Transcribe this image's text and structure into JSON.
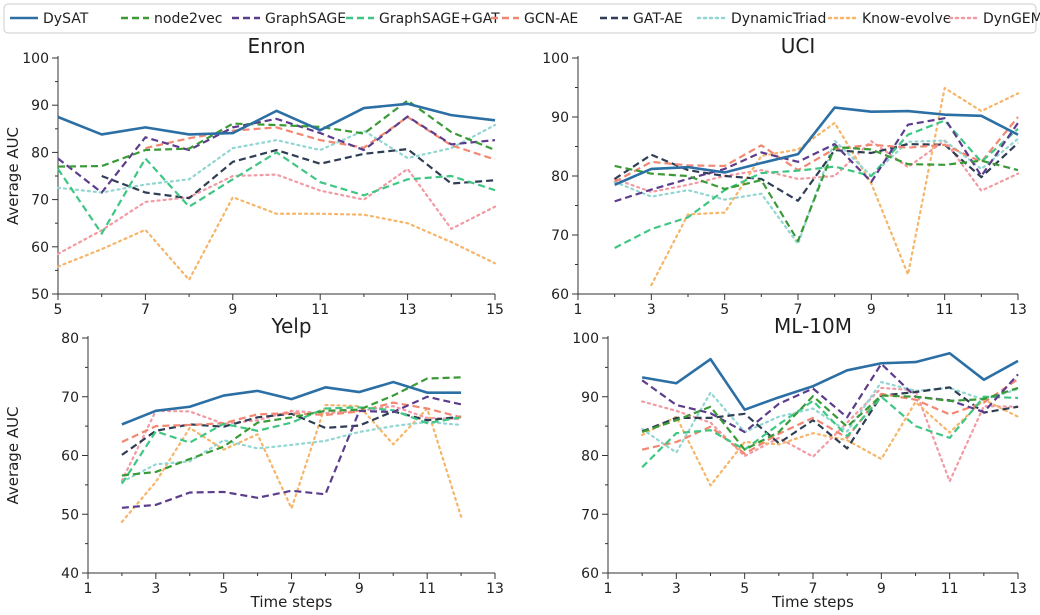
{
  "colors": {
    "DySAT": "#2b6fa5",
    "node2vec": "#3a9a35",
    "GraphSAGE": "#5c3c8c",
    "GraphSAGE+GAT": "#3fc683",
    "GCN-AE": "#f28872",
    "GAT-AE": "#2f3e55",
    "DynamicTriad": "#92d6d2",
    "Know-evolve": "#f6b568",
    "DynGEM": "#f29aa3"
  },
  "legend": [
    {
      "name": "DySAT",
      "style": "solid"
    },
    {
      "name": "node2vec",
      "style": "dashed"
    },
    {
      "name": "GraphSAGE",
      "style": "dashed"
    },
    {
      "name": "GraphSAGE+GAT",
      "style": "dashed"
    },
    {
      "name": "GCN-AE",
      "style": "dashed"
    },
    {
      "name": "GAT-AE",
      "style": "dashed"
    },
    {
      "name": "DynamicTriad",
      "style": "dotted"
    },
    {
      "name": "Know-evolve",
      "style": "dotted"
    },
    {
      "name": "DynGEM",
      "style": "dotted"
    }
  ],
  "chart_data": [
    {
      "type": "line",
      "title": "Enron",
      "xlabel": "",
      "ylabel": "Average AUC",
      "xlim": [
        5,
        15
      ],
      "ylim": [
        50,
        100
      ],
      "xticks": [
        5,
        7,
        9,
        11,
        13,
        15
      ],
      "yticks": [
        50,
        60,
        70,
        80,
        90,
        100
      ],
      "x": [
        5,
        6,
        7,
        8,
        9,
        10,
        11,
        12,
        13,
        14,
        15
      ],
      "series": [
        {
          "name": "DySAT",
          "values": [
            87.5,
            83.8,
            85.3,
            83.8,
            84.1,
            88.8,
            84.7,
            89.4,
            90.3,
            87.9,
            86.8
          ]
        },
        {
          "name": "node2vec",
          "values": [
            77.0,
            77.1,
            80.5,
            80.8,
            86.1,
            85.8,
            85.4,
            84.0,
            91.0,
            84.3,
            80.5
          ]
        },
        {
          "name": "GraphSAGE",
          "values": [
            78.7,
            71.5,
            83.2,
            80.5,
            85.3,
            87.1,
            84.1,
            80.5,
            87.6,
            81.7,
            82.6
          ]
        },
        {
          "name": "GraphSAGE+GAT",
          "values": [
            76.5,
            62.8,
            78.7,
            68.5,
            74.3,
            80.0,
            73.7,
            70.9,
            74.3,
            75.0,
            72.0
          ]
        },
        {
          "name": "GCN-AE",
          "values": [
            null,
            null,
            80.9,
            83.0,
            84.6,
            85.3,
            82.6,
            81.0,
            87.5,
            81.5,
            78.5
          ]
        },
        {
          "name": "GAT-AE",
          "values": [
            null,
            75.0,
            71.5,
            70.3,
            78.0,
            80.5,
            77.6,
            79.7,
            80.7,
            73.4,
            74.1
          ]
        },
        {
          "name": "DynamicTriad",
          "values": [
            72.5,
            71.5,
            73.2,
            74.3,
            80.9,
            82.6,
            80.5,
            84.6,
            78.8,
            80.9,
            85.8
          ]
        },
        {
          "name": "Know-evolve",
          "values": [
            55.8,
            59.5,
            63.6,
            53.0,
            70.5,
            67.0,
            67.0,
            66.8,
            65.0,
            61.0,
            56.5
          ]
        },
        {
          "name": "DynGEM",
          "values": [
            58.5,
            63.5,
            69.5,
            70.5,
            75.0,
            75.3,
            71.9,
            70.0,
            76.5,
            63.8,
            68.5
          ]
        }
      ]
    },
    {
      "type": "line",
      "title": "UCI",
      "xlabel": "",
      "ylabel": "",
      "xlim": [
        1,
        13
      ],
      "ylim": [
        60,
        100
      ],
      "xticks": [
        1,
        3,
        5,
        7,
        9,
        11,
        13
      ],
      "yticks": [
        60,
        70,
        80,
        90,
        100
      ],
      "x": [
        2,
        3,
        4,
        5,
        6,
        7,
        8,
        9,
        10,
        11,
        12,
        13
      ],
      "series": [
        {
          "name": "DySAT",
          "values": [
            78.5,
            81.2,
            81.5,
            80.6,
            82.2,
            83.7,
            91.6,
            90.9,
            91.0,
            90.4,
            90.2,
            87.0
          ]
        },
        {
          "name": "node2vec",
          "values": [
            81.7,
            80.4,
            80.0,
            77.8,
            79.3,
            69.0,
            84.9,
            84.5,
            82.0,
            81.9,
            82.6,
            81.0
          ]
        },
        {
          "name": "GraphSAGE",
          "values": [
            75.7,
            77.7,
            79.5,
            81.2,
            84.0,
            82.4,
            85.4,
            79.0,
            88.7,
            89.8,
            80.0,
            89.0
          ]
        },
        {
          "name": "GraphSAGE+GAT",
          "values": [
            67.8,
            71.0,
            73.0,
            77.6,
            80.5,
            80.9,
            81.6,
            80.0,
            87.0,
            89.4,
            82.4,
            88.0
          ]
        },
        {
          "name": "GCN-AE",
          "values": [
            79.0,
            82.4,
            81.8,
            81.7,
            85.2,
            81.0,
            84.6,
            85.3,
            84.8,
            85.3,
            82.4,
            90.0
          ]
        },
        {
          "name": "GAT-AE",
          "values": [
            79.5,
            83.6,
            81.0,
            80.0,
            79.5,
            75.8,
            84.4,
            83.9,
            85.4,
            85.3,
            79.8,
            85.6
          ]
        },
        {
          "name": "DynamicTriad",
          "values": [
            79.0,
            76.5,
            77.6,
            76.0,
            77.0,
            68.5,
            86.0,
            80.0,
            85.8,
            86.0,
            81.2,
            86.3
          ]
        },
        {
          "name": "Know-evolve",
          "values": [
            null,
            61.5,
            73.5,
            73.8,
            83.4,
            84.5,
            89.0,
            78.7,
            63.3,
            94.9,
            91.0,
            94.0
          ]
        },
        {
          "name": "DynGEM",
          "values": [
            79.5,
            77.3,
            78.5,
            80.0,
            81.0,
            79.5,
            80.0,
            85.9,
            81.5,
            86.0,
            77.5,
            80.4
          ]
        }
      ]
    },
    {
      "type": "line",
      "title": "Yelp",
      "xlabel": "Time steps",
      "ylabel": "Average AUC",
      "xlim": [
        1,
        13
      ],
      "ylim": [
        40,
        80
      ],
      "xticks": [
        1,
        3,
        5,
        7,
        9,
        11,
        13
      ],
      "yticks": [
        40,
        50,
        60,
        70,
        80
      ],
      "x": [
        2,
        3,
        4,
        5,
        6,
        7,
        8,
        9,
        10,
        11,
        12
      ],
      "series": [
        {
          "name": "DySAT",
          "values": [
            65.3,
            67.6,
            68.3,
            70.2,
            71.0,
            69.6,
            71.6,
            70.8,
            72.5,
            70.7,
            70.7
          ]
        },
        {
          "name": "node2vec",
          "values": [
            56.6,
            57.2,
            59.4,
            61.5,
            65.6,
            66.5,
            67.6,
            67.8,
            70.2,
            73.1,
            73.3
          ]
        },
        {
          "name": "GraphSAGE",
          "values": [
            51.1,
            51.6,
            53.7,
            53.8,
            52.8,
            54.0,
            53.4,
            67.6,
            67.4,
            70.0,
            68.7
          ]
        },
        {
          "name": "GraphSAGE+GAT",
          "values": [
            55.2,
            64.1,
            62.2,
            65.4,
            64.2,
            65.6,
            68.0,
            68.2,
            67.7,
            65.5,
            66.5
          ]
        },
        {
          "name": "GCN-AE",
          "values": [
            62.3,
            65.0,
            65.2,
            65.5,
            67.0,
            67.2,
            66.9,
            67.5,
            69.0,
            68.0,
            66.5
          ]
        },
        {
          "name": "GAT-AE",
          "values": [
            60.1,
            64.2,
            65.3,
            64.9,
            66.5,
            67.1,
            64.7,
            65.1,
            67.5,
            66.0,
            66.6
          ]
        },
        {
          "name": "DynamicTriad",
          "values": [
            55.5,
            58.5,
            59.0,
            62.6,
            61.2,
            61.8,
            62.5,
            64.0,
            65.0,
            65.7,
            65.2
          ]
        },
        {
          "name": "Know-evolve",
          "values": [
            48.7,
            55.5,
            64.7,
            61.0,
            63.6,
            51.0,
            68.6,
            68.4,
            61.9,
            68.0,
            49.6
          ]
        },
        {
          "name": "DynGEM",
          "values": [
            55.7,
            67.6,
            67.5,
            65.4,
            66.0,
            67.6,
            67.2,
            67.6,
            68.4,
            66.4,
            66.2
          ]
        }
      ]
    },
    {
      "type": "line",
      "title": "ML-10M",
      "xlabel": "Time steps",
      "ylabel": "",
      "xlim": [
        1,
        13
      ],
      "ylim": [
        60,
        100
      ],
      "xticks": [
        1,
        3,
        5,
        7,
        9,
        11,
        13
      ],
      "yticks": [
        60,
        70,
        80,
        90,
        100
      ],
      "x": [
        2,
        3,
        4,
        5,
        6,
        7,
        8,
        9,
        10,
        11,
        12,
        13
      ],
      "series": [
        {
          "name": "DySAT",
          "values": [
            93.3,
            92.3,
            96.4,
            87.8,
            89.9,
            91.8,
            94.5,
            95.7,
            95.9,
            97.4,
            92.9,
            96.1
          ]
        },
        {
          "name": "node2vec",
          "values": [
            84.0,
            86.0,
            88.3,
            81.0,
            84.0,
            90.1,
            84.9,
            90.2,
            90.0,
            89.3,
            89.6,
            91.5
          ]
        },
        {
          "name": "GraphSAGE",
          "values": [
            92.8,
            88.6,
            87.2,
            84.0,
            88.8,
            91.4,
            86.5,
            95.6,
            90.0,
            89.4,
            87.4,
            93.8
          ]
        },
        {
          "name": "GraphSAGE+GAT",
          "values": [
            78.0,
            83.8,
            84.3,
            81.0,
            85.3,
            89.3,
            83.3,
            90.0,
            85.0,
            83.0,
            90.0,
            89.8
          ]
        },
        {
          "name": "GCN-AE",
          "values": [
            81.0,
            82.3,
            84.9,
            80.3,
            83.7,
            86.4,
            83.0,
            90.5,
            89.5,
            87.0,
            89.0,
            93.0
          ]
        },
        {
          "name": "GAT-AE",
          "values": [
            84.1,
            86.4,
            86.4,
            87.1,
            82.1,
            86.0,
            81.2,
            90.2,
            90.8,
            91.6,
            87.3,
            88.3
          ]
        },
        {
          "name": "DynamicTriad",
          "values": [
            84.5,
            80.5,
            90.7,
            84.0,
            86.6,
            88.0,
            84.1,
            92.5,
            91.0,
            91.5,
            89.5,
            91.3
          ]
        },
        {
          "name": "Know-evolve",
          "values": [
            83.5,
            86.6,
            74.9,
            82.3,
            81.9,
            83.8,
            82.6,
            79.4,
            89.1,
            83.9,
            89.5,
            86.6
          ]
        },
        {
          "name": "DynGEM",
          "values": [
            89.2,
            87.6,
            85.6,
            79.9,
            83.0,
            79.8,
            85.6,
            91.5,
            91.1,
            75.6,
            88.4,
            88.3
          ]
        }
      ]
    }
  ]
}
